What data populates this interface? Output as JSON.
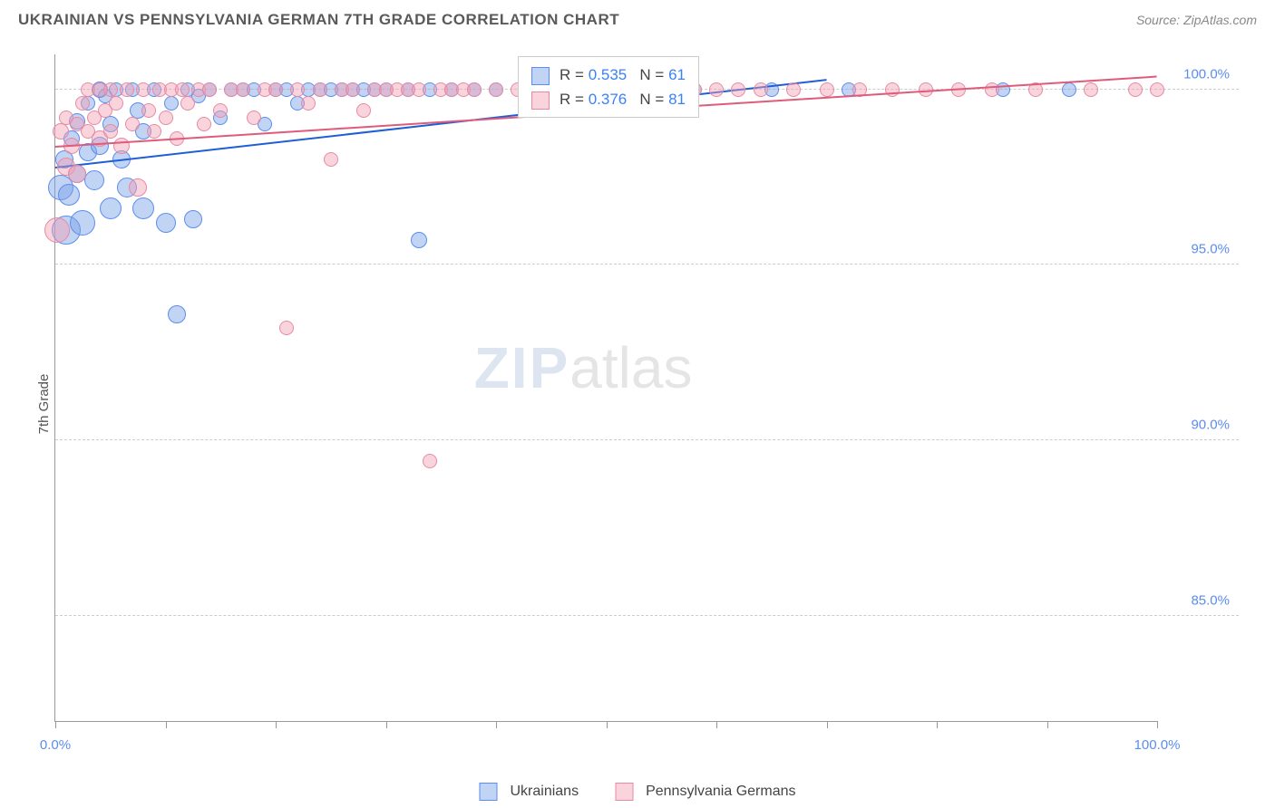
{
  "title": "UKRAINIAN VS PENNSYLVANIA GERMAN 7TH GRADE CORRELATION CHART",
  "source_label": "Source: ",
  "source_name": "ZipAtlas.com",
  "ylabel": "7th Grade",
  "chart": {
    "type": "scatter",
    "xlim": [
      0,
      100
    ],
    "ylim": [
      82,
      101
    ],
    "y_ticks": [
      85.0,
      90.0,
      95.0,
      100.0
    ],
    "x_ticks": [
      0,
      10,
      20,
      30,
      40,
      50,
      60,
      70,
      80,
      90,
      100
    ],
    "x_labels_shown": {
      "0": "0.0%",
      "100": "100.0%"
    },
    "grid_color": "#cccccc",
    "axis_color": "#999999",
    "background_color": "#ffffff",
    "tick_label_color": "#5b8def",
    "tick_label_fontsize": 15,
    "series": [
      {
        "name": "Ukrainians",
        "fill": "rgba(120,160,230,0.45)",
        "stroke": "#5b8def",
        "trend_color": "#1e5fd6",
        "trend": {
          "x1": 0,
          "y1": 97.8,
          "x2": 70,
          "y2": 100.3
        },
        "R": 0.535,
        "N": 61,
        "points": [
          {
            "x": 0.5,
            "y": 97.2,
            "r": 14
          },
          {
            "x": 0.8,
            "y": 98.0,
            "r": 10
          },
          {
            "x": 1.2,
            "y": 97.0,
            "r": 12
          },
          {
            "x": 1.0,
            "y": 96.0,
            "r": 16
          },
          {
            "x": 1.5,
            "y": 98.6,
            "r": 9
          },
          {
            "x": 2.0,
            "y": 97.6,
            "r": 10
          },
          {
            "x": 2.0,
            "y": 99.1,
            "r": 9
          },
          {
            "x": 2.5,
            "y": 96.2,
            "r": 14
          },
          {
            "x": 3.0,
            "y": 98.2,
            "r": 10
          },
          {
            "x": 3.0,
            "y": 99.6,
            "r": 8
          },
          {
            "x": 3.5,
            "y": 97.4,
            "r": 11
          },
          {
            "x": 4.0,
            "y": 100.0,
            "r": 9
          },
          {
            "x": 4.0,
            "y": 98.4,
            "r": 10
          },
          {
            "x": 4.5,
            "y": 99.8,
            "r": 8
          },
          {
            "x": 5.0,
            "y": 99.0,
            "r": 9
          },
          {
            "x": 5.0,
            "y": 96.6,
            "r": 12
          },
          {
            "x": 5.5,
            "y": 100.0,
            "r": 8
          },
          {
            "x": 6.0,
            "y": 98.0,
            "r": 10
          },
          {
            "x": 6.5,
            "y": 97.2,
            "r": 11
          },
          {
            "x": 7.0,
            "y": 100.0,
            "r": 8
          },
          {
            "x": 7.5,
            "y": 99.4,
            "r": 9
          },
          {
            "x": 8.0,
            "y": 98.8,
            "r": 9
          },
          {
            "x": 8.0,
            "y": 96.6,
            "r": 12
          },
          {
            "x": 9.0,
            "y": 100.0,
            "r": 8
          },
          {
            "x": 10.0,
            "y": 96.2,
            "r": 11
          },
          {
            "x": 10.5,
            "y": 99.6,
            "r": 8
          },
          {
            "x": 11.0,
            "y": 93.6,
            "r": 10
          },
          {
            "x": 12.0,
            "y": 100.0,
            "r": 8
          },
          {
            "x": 12.5,
            "y": 96.3,
            "r": 10
          },
          {
            "x": 13.0,
            "y": 99.8,
            "r": 8
          },
          {
            "x": 14.0,
            "y": 100.0,
            "r": 8
          },
          {
            "x": 15.0,
            "y": 99.2,
            "r": 8
          },
          {
            "x": 16.0,
            "y": 100.0,
            "r": 8
          },
          {
            "x": 17.0,
            "y": 100.0,
            "r": 8
          },
          {
            "x": 18.0,
            "y": 100.0,
            "r": 8
          },
          {
            "x": 19.0,
            "y": 99.0,
            "r": 8
          },
          {
            "x": 20.0,
            "y": 100.0,
            "r": 8
          },
          {
            "x": 21.0,
            "y": 100.0,
            "r": 8
          },
          {
            "x": 22.0,
            "y": 99.6,
            "r": 8
          },
          {
            "x": 23.0,
            "y": 100.0,
            "r": 8
          },
          {
            "x": 24.0,
            "y": 100.0,
            "r": 8
          },
          {
            "x": 25.0,
            "y": 100.0,
            "r": 8
          },
          {
            "x": 26.0,
            "y": 100.0,
            "r": 8
          },
          {
            "x": 27.0,
            "y": 100.0,
            "r": 8
          },
          {
            "x": 28.0,
            "y": 100.0,
            "r": 8
          },
          {
            "x": 29.0,
            "y": 100.0,
            "r": 8
          },
          {
            "x": 30.0,
            "y": 100.0,
            "r": 8
          },
          {
            "x": 32.0,
            "y": 100.0,
            "r": 8
          },
          {
            "x": 33.0,
            "y": 95.7,
            "r": 9
          },
          {
            "x": 34.0,
            "y": 100.0,
            "r": 8
          },
          {
            "x": 36.0,
            "y": 100.0,
            "r": 8
          },
          {
            "x": 38.0,
            "y": 100.0,
            "r": 8
          },
          {
            "x": 40.0,
            "y": 100.0,
            "r": 8
          },
          {
            "x": 43.0,
            "y": 100.0,
            "r": 8
          },
          {
            "x": 48.0,
            "y": 100.0,
            "r": 8
          },
          {
            "x": 53.0,
            "y": 100.0,
            "r": 8
          },
          {
            "x": 58.0,
            "y": 100.0,
            "r": 8
          },
          {
            "x": 65.0,
            "y": 100.0,
            "r": 8
          },
          {
            "x": 72.0,
            "y": 100.0,
            "r": 8
          },
          {
            "x": 86.0,
            "y": 100.0,
            "r": 8
          },
          {
            "x": 92.0,
            "y": 100.0,
            "r": 8
          }
        ]
      },
      {
        "name": "Pennsylvania Germans",
        "fill": "rgba(245,160,180,0.45)",
        "stroke": "#e68aa3",
        "trend_color": "#e05a7a",
        "trend": {
          "x1": 0,
          "y1": 98.4,
          "x2": 100,
          "y2": 100.4
        },
        "R": 0.376,
        "N": 81,
        "points": [
          {
            "x": 0.2,
            "y": 96.0,
            "r": 14
          },
          {
            "x": 0.5,
            "y": 98.8,
            "r": 9
          },
          {
            "x": 1.0,
            "y": 97.8,
            "r": 10
          },
          {
            "x": 1.0,
            "y": 99.2,
            "r": 8
          },
          {
            "x": 1.5,
            "y": 98.4,
            "r": 9
          },
          {
            "x": 2.0,
            "y": 99.0,
            "r": 8
          },
          {
            "x": 2.0,
            "y": 97.6,
            "r": 10
          },
          {
            "x": 2.5,
            "y": 99.6,
            "r": 8
          },
          {
            "x": 3.0,
            "y": 98.8,
            "r": 8
          },
          {
            "x": 3.0,
            "y": 100.0,
            "r": 8
          },
          {
            "x": 3.5,
            "y": 99.2,
            "r": 8
          },
          {
            "x": 4.0,
            "y": 98.6,
            "r": 9
          },
          {
            "x": 4.0,
            "y": 100.0,
            "r": 8
          },
          {
            "x": 4.5,
            "y": 99.4,
            "r": 8
          },
          {
            "x": 5.0,
            "y": 98.8,
            "r": 8
          },
          {
            "x": 5.0,
            "y": 100.0,
            "r": 8
          },
          {
            "x": 5.5,
            "y": 99.6,
            "r": 8
          },
          {
            "x": 6.0,
            "y": 98.4,
            "r": 9
          },
          {
            "x": 6.5,
            "y": 100.0,
            "r": 8
          },
          {
            "x": 7.0,
            "y": 99.0,
            "r": 8
          },
          {
            "x": 7.5,
            "y": 97.2,
            "r": 10
          },
          {
            "x": 8.0,
            "y": 100.0,
            "r": 8
          },
          {
            "x": 8.5,
            "y": 99.4,
            "r": 8
          },
          {
            "x": 9.0,
            "y": 98.8,
            "r": 8
          },
          {
            "x": 9.5,
            "y": 100.0,
            "r": 8
          },
          {
            "x": 10.0,
            "y": 99.2,
            "r": 8
          },
          {
            "x": 10.5,
            "y": 100.0,
            "r": 8
          },
          {
            "x": 11.0,
            "y": 98.6,
            "r": 8
          },
          {
            "x": 11.5,
            "y": 100.0,
            "r": 8
          },
          {
            "x": 12.0,
            "y": 99.6,
            "r": 8
          },
          {
            "x": 13.0,
            "y": 100.0,
            "r": 8
          },
          {
            "x": 13.5,
            "y": 99.0,
            "r": 8
          },
          {
            "x": 14.0,
            "y": 100.0,
            "r": 8
          },
          {
            "x": 15.0,
            "y": 99.4,
            "r": 8
          },
          {
            "x": 16.0,
            "y": 100.0,
            "r": 8
          },
          {
            "x": 17.0,
            "y": 100.0,
            "r": 8
          },
          {
            "x": 18.0,
            "y": 99.2,
            "r": 8
          },
          {
            "x": 19.0,
            "y": 100.0,
            "r": 8
          },
          {
            "x": 20.0,
            "y": 100.0,
            "r": 8
          },
          {
            "x": 21.0,
            "y": 93.2,
            "r": 8
          },
          {
            "x": 22.0,
            "y": 100.0,
            "r": 8
          },
          {
            "x": 23.0,
            "y": 99.6,
            "r": 8
          },
          {
            "x": 24.0,
            "y": 100.0,
            "r": 8
          },
          {
            "x": 25.0,
            "y": 98.0,
            "r": 8
          },
          {
            "x": 26.0,
            "y": 100.0,
            "r": 8
          },
          {
            "x": 27.0,
            "y": 100.0,
            "r": 8
          },
          {
            "x": 28.0,
            "y": 99.4,
            "r": 8
          },
          {
            "x": 29.0,
            "y": 100.0,
            "r": 8
          },
          {
            "x": 30.0,
            "y": 100.0,
            "r": 8
          },
          {
            "x": 31.0,
            "y": 100.0,
            "r": 8
          },
          {
            "x": 32.0,
            "y": 100.0,
            "r": 8
          },
          {
            "x": 33.0,
            "y": 100.0,
            "r": 8
          },
          {
            "x": 34.0,
            "y": 89.4,
            "r": 8
          },
          {
            "x": 35.0,
            "y": 100.0,
            "r": 8
          },
          {
            "x": 36.0,
            "y": 100.0,
            "r": 8
          },
          {
            "x": 37.0,
            "y": 100.0,
            "r": 8
          },
          {
            "x": 38.0,
            "y": 100.0,
            "r": 8
          },
          {
            "x": 40.0,
            "y": 100.0,
            "r": 8
          },
          {
            "x": 42.0,
            "y": 100.0,
            "r": 8
          },
          {
            "x": 44.0,
            "y": 100.0,
            "r": 8
          },
          {
            "x": 46.0,
            "y": 100.0,
            "r": 8
          },
          {
            "x": 48.0,
            "y": 100.0,
            "r": 8
          },
          {
            "x": 50.0,
            "y": 100.0,
            "r": 8
          },
          {
            "x": 52.0,
            "y": 100.0,
            "r": 8
          },
          {
            "x": 54.0,
            "y": 100.0,
            "r": 8
          },
          {
            "x": 56.0,
            "y": 100.0,
            "r": 8
          },
          {
            "x": 58.0,
            "y": 100.0,
            "r": 8
          },
          {
            "x": 60.0,
            "y": 100.0,
            "r": 8
          },
          {
            "x": 62.0,
            "y": 100.0,
            "r": 8
          },
          {
            "x": 64.0,
            "y": 100.0,
            "r": 8
          },
          {
            "x": 67.0,
            "y": 100.0,
            "r": 8
          },
          {
            "x": 70.0,
            "y": 100.0,
            "r": 8
          },
          {
            "x": 73.0,
            "y": 100.0,
            "r": 8
          },
          {
            "x": 76.0,
            "y": 100.0,
            "r": 8
          },
          {
            "x": 79.0,
            "y": 100.0,
            "r": 8
          },
          {
            "x": 82.0,
            "y": 100.0,
            "r": 8
          },
          {
            "x": 85.0,
            "y": 100.0,
            "r": 8
          },
          {
            "x": 89.0,
            "y": 100.0,
            "r": 8
          },
          {
            "x": 94.0,
            "y": 100.0,
            "r": 8
          },
          {
            "x": 98.0,
            "y": 100.0,
            "r": 8
          },
          {
            "x": 100.0,
            "y": 100.0,
            "r": 8
          }
        ]
      }
    ]
  },
  "stats_legend": {
    "r_label": "R = ",
    "n_label": "N = "
  },
  "bottom_legend": {
    "items": [
      "Ukrainians",
      "Pennsylvania Germans"
    ]
  },
  "watermark": {
    "zip": "ZIP",
    "atlas": "atlas"
  }
}
